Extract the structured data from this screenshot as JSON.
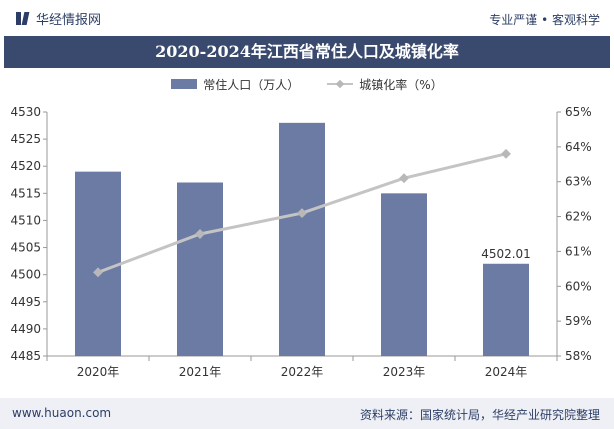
{
  "header": {
    "brand": "华经情报网",
    "slogan": "专业严谨 • 客观科学"
  },
  "footer": {
    "website": "www.huaon.com",
    "source": "资料来源：国家统计局，华经产业研究院整理"
  },
  "colors": {
    "bar": "#6b7ba4",
    "line": "#c4c4c4",
    "marker": "#b8b8b8",
    "title_bg": "#3a4a6e",
    "text": "#2c3e66"
  },
  "chart_data": {
    "type": "bar",
    "title": "2020-2024年江西省常住人口及城镇化率",
    "categories": [
      "2020年",
      "2021年",
      "2022年",
      "2023年",
      "2024年"
    ],
    "series": [
      {
        "name": "常住人口（万人）",
        "type": "bar",
        "axis": "left",
        "values": [
          4519,
          4517,
          4528,
          4515,
          4502.01
        ]
      },
      {
        "name": "城镇化率（%）",
        "type": "line",
        "axis": "right",
        "values": [
          60.4,
          61.5,
          62.1,
          63.1,
          63.8
        ]
      }
    ],
    "data_labels": [
      {
        "category": "2024年",
        "text": "4502.01"
      }
    ],
    "y_left": {
      "range": [
        4485,
        4530
      ],
      "ticks": [
        "4485",
        "4490",
        "4495",
        "4500",
        "4505",
        "4510",
        "4515",
        "4520",
        "4525",
        "4530"
      ]
    },
    "y_right": {
      "range": [
        58,
        65
      ],
      "ticks": [
        "58%",
        "59%",
        "60%",
        "61%",
        "62%",
        "63%",
        "64%",
        "65%"
      ]
    },
    "legend_position": "top-center",
    "grid": false
  }
}
